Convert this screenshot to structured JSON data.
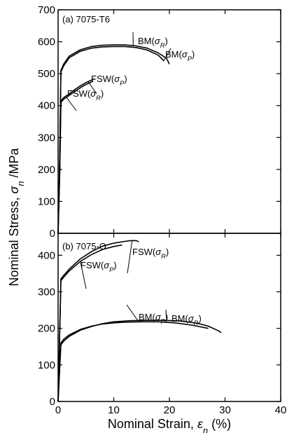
{
  "figure": {
    "ylabel": "Nominal Stress, σn /MPa",
    "xlabel": "Nominal Strain, εn (%)"
  },
  "chart_data": [
    {
      "type": "line",
      "panel_label": "(a) 7075-T6",
      "xlim": [
        0,
        40
      ],
      "ylim": [
        0,
        700
      ],
      "x_ticks": [
        0,
        10,
        20,
        30,
        40
      ],
      "y_ticks": [
        0,
        100,
        200,
        300,
        400,
        500,
        600,
        700
      ],
      "x_ticks_labeled": false,
      "grid": false,
      "series": [
        {
          "name": "BM(σR)",
          "points": [
            [
              0,
              0
            ],
            [
              0.3,
              250
            ],
            [
              0.5,
              510
            ],
            [
              1,
              530
            ],
            [
              2,
              555
            ],
            [
              4,
              575
            ],
            [
              6,
              585
            ],
            [
              8,
              589
            ],
            [
              10,
              590
            ],
            [
              12,
              590
            ],
            [
              14,
              587
            ],
            [
              16,
              580
            ],
            [
              18,
              565
            ],
            [
              19.5,
              548
            ],
            [
              20,
              530
            ]
          ]
        },
        {
          "name": "BM(σP)",
          "points": [
            [
              0,
              0
            ],
            [
              0.3,
              245
            ],
            [
              0.5,
              505
            ],
            [
              1,
              525
            ],
            [
              2,
              550
            ],
            [
              4,
              570
            ],
            [
              6,
              580
            ],
            [
              8,
              584
            ],
            [
              10,
              585
            ],
            [
              12,
              585
            ],
            [
              14,
              582
            ],
            [
              16,
              574
            ],
            [
              18,
              558
            ],
            [
              19,
              540
            ]
          ]
        },
        {
          "name": "FSW(σP)",
          "points": [
            [
              0,
              0
            ],
            [
              0.3,
              200
            ],
            [
              0.5,
              415
            ],
            [
              1,
              425
            ],
            [
              2,
              437
            ],
            [
              3,
              450
            ],
            [
              4,
              462
            ],
            [
              5,
              472
            ],
            [
              6,
              480
            ],
            [
              6.5,
              484
            ]
          ]
        },
        {
          "name": "FSW(σR)",
          "points": [
            [
              0,
              0
            ],
            [
              0.3,
              195
            ],
            [
              0.5,
              410
            ],
            [
              1,
              420
            ],
            [
              2,
              432
            ],
            [
              3,
              444
            ],
            [
              4,
              456
            ],
            [
              5,
              466
            ],
            [
              6,
              474
            ],
            [
              6.3,
              477
            ]
          ]
        }
      ],
      "annotations": [
        {
          "text": "BM(σR)",
          "series": "BM(σR)",
          "at_x": 13.5
        },
        {
          "text": "BM(σP)",
          "series": "BM(σP)",
          "at_x": 19
        },
        {
          "text": "FSW(σP)",
          "series": "FSW(σP)",
          "at_x": 5.4
        },
        {
          "text": "FSW(σR)",
          "series": "FSW(σR)",
          "at_x": 1.5
        }
      ]
    },
    {
      "type": "line",
      "panel_label": "(b) 7075-O",
      "xlim": [
        0,
        40
      ],
      "ylim": [
        0,
        460
      ],
      "x_ticks": [
        0,
        10,
        20,
        30,
        40
      ],
      "y_ticks": [
        0,
        100,
        200,
        300,
        400
      ],
      "grid": false,
      "series": [
        {
          "name": "FSW(σR)",
          "points": [
            [
              0,
              0
            ],
            [
              0.3,
              200
            ],
            [
              0.5,
              335
            ],
            [
              1,
              345
            ],
            [
              2,
              362
            ],
            [
              4,
              390
            ],
            [
              6,
              410
            ],
            [
              8,
              425
            ],
            [
              10,
              433
            ],
            [
              12,
              438
            ],
            [
              13,
              440
            ],
            [
              14,
              440
            ],
            [
              14.5,
              437
            ]
          ]
        },
        {
          "name": "FSW(σP)",
          "points": [
            [
              0,
              0
            ],
            [
              0.3,
              195
            ],
            [
              0.5,
              330
            ],
            [
              1,
              340
            ],
            [
              2,
              357
            ],
            [
              4,
              383
            ],
            [
              6,
              402
            ],
            [
              8,
              416
            ],
            [
              10,
              424
            ],
            [
              11.5,
              428
            ]
          ]
        },
        {
          "name": "BM(σP)",
          "points": [
            [
              0,
              0
            ],
            [
              0.3,
              100
            ],
            [
              0.5,
              160
            ],
            [
              1,
              170
            ],
            [
              2,
              182
            ],
            [
              4,
              197
            ],
            [
              6,
              206
            ],
            [
              8,
              212
            ],
            [
              10,
              215
            ],
            [
              12,
              217
            ],
            [
              15,
              218
            ],
            [
              18,
              218
            ],
            [
              21,
              215
            ],
            [
              24,
              209
            ],
            [
              27,
              200
            ]
          ]
        },
        {
          "name": "BM(σR)",
          "points": [
            [
              0,
              0
            ],
            [
              0.3,
              95
            ],
            [
              0.5,
              155
            ],
            [
              1,
              165
            ],
            [
              2,
              178
            ],
            [
              4,
              195
            ],
            [
              6,
              205
            ],
            [
              8,
              213
            ],
            [
              10,
              218
            ],
            [
              13,
              221
            ],
            [
              16,
              222
            ],
            [
              19,
              222
            ],
            [
              22,
              220
            ],
            [
              25,
              214
            ],
            [
              27,
              206
            ],
            [
              29,
              192
            ],
            [
              29.3,
              188
            ]
          ]
        }
      ],
      "annotations": [
        {
          "text": "FSW(σR)",
          "series": "FSW(σR)",
          "at_x": 13.3
        },
        {
          "text": "FSW(σP)",
          "series": "FSW(σP)",
          "at_x": 4
        },
        {
          "text": "BM(σP)",
          "series": "BM(σP)",
          "at_x": 14.5
        },
        {
          "text": "BM(σR)",
          "series": "BM(σR)",
          "at_x": 19.5
        }
      ]
    }
  ]
}
